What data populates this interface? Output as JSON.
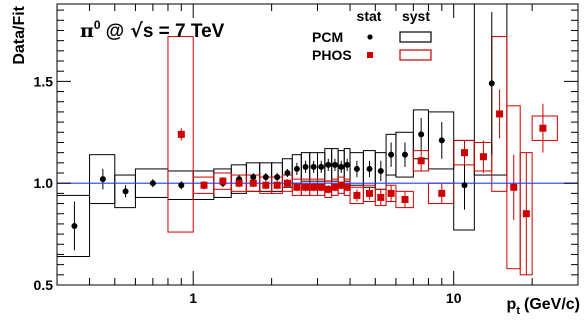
{
  "chart_data": {
    "type": "scatter",
    "title": "π⁰ @ √s = 7 TeV",
    "title_parts": {
      "particle": "π",
      "particle_sup": "0",
      "at": "@",
      "sqrt": "√",
      "s_eq": "s = 7 TeV"
    },
    "xlabel": "p_t (GeV/c)",
    "xlabel_parts": {
      "p": "p",
      "sub": "t",
      "unit": "(GeV/c)"
    },
    "ylabel": "Data/Fit",
    "x_scale": "log",
    "xlim": [
      0.3,
      30
    ],
    "ylim": [
      0.5,
      1.88
    ],
    "x_tick_labels": [
      {
        "value": 1,
        "label": "1"
      },
      {
        "value": 10,
        "label": "10"
      }
    ],
    "y_tick_labels": [
      {
        "value": 0.5,
        "label": "0.5"
      },
      {
        "value": 1.0,
        "label": "1.0"
      },
      {
        "value": 1.5,
        "label": "1.5"
      }
    ],
    "reference_line": {
      "y": 1.0,
      "color": "#1f3fff"
    },
    "legend": {
      "placement": "top-center",
      "stat_header": "stat",
      "syst_header": "syst",
      "entries": [
        {
          "name": "PCM",
          "color": "#000000",
          "marker": "circle"
        },
        {
          "name": "PHOS",
          "color": "#cc0000",
          "marker": "square"
        }
      ]
    },
    "series": [
      {
        "name": "PCM",
        "color": "#000000",
        "marker": "circle",
        "points": [
          {
            "x": 0.35,
            "y": 0.79,
            "xlo": 0.3,
            "xhi": 0.4,
            "stat": 0.12,
            "syst": 0.15
          },
          {
            "x": 0.45,
            "y": 1.02,
            "xlo": 0.4,
            "xhi": 0.5,
            "stat": 0.05,
            "syst": 0.12
          },
          {
            "x": 0.55,
            "y": 0.96,
            "xlo": 0.5,
            "xhi": 0.6,
            "stat": 0.03,
            "syst": 0.08
          },
          {
            "x": 0.7,
            "y": 1.0,
            "xlo": 0.6,
            "xhi": 0.8,
            "stat": 0.02,
            "syst": 0.07
          },
          {
            "x": 0.9,
            "y": 0.99,
            "xlo": 0.8,
            "xhi": 1.0,
            "stat": 0.02,
            "syst": 0.07
          },
          {
            "x": 1.1,
            "y": 0.99,
            "xlo": 1.0,
            "xhi": 1.2,
            "stat": 0.02,
            "syst": 0.07
          },
          {
            "x": 1.3,
            "y": 1.0,
            "xlo": 1.2,
            "xhi": 1.4,
            "stat": 0.02,
            "syst": 0.07
          },
          {
            "x": 1.5,
            "y": 1.02,
            "xlo": 1.4,
            "xhi": 1.6,
            "stat": 0.02,
            "syst": 0.07
          },
          {
            "x": 1.7,
            "y": 1.03,
            "xlo": 1.6,
            "xhi": 1.8,
            "stat": 0.02,
            "syst": 0.07
          },
          {
            "x": 1.9,
            "y": 1.03,
            "xlo": 1.8,
            "xhi": 2.0,
            "stat": 0.02,
            "syst": 0.07
          },
          {
            "x": 2.1,
            "y": 1.03,
            "xlo": 2.0,
            "xhi": 2.2,
            "stat": 0.02,
            "syst": 0.07
          },
          {
            "x": 2.3,
            "y": 1.05,
            "xlo": 2.2,
            "xhi": 2.4,
            "stat": 0.02,
            "syst": 0.07
          },
          {
            "x": 2.5,
            "y": 1.07,
            "xlo": 2.4,
            "xhi": 2.6,
            "stat": 0.03,
            "syst": 0.07
          },
          {
            "x": 2.7,
            "y": 1.08,
            "xlo": 2.6,
            "xhi": 2.8,
            "stat": 0.03,
            "syst": 0.07
          },
          {
            "x": 2.9,
            "y": 1.08,
            "xlo": 2.8,
            "xhi": 3.0,
            "stat": 0.03,
            "syst": 0.07
          },
          {
            "x": 3.1,
            "y": 1.08,
            "xlo": 3.0,
            "xhi": 3.2,
            "stat": 0.03,
            "syst": 0.07
          },
          {
            "x": 3.3,
            "y": 1.09,
            "xlo": 3.2,
            "xhi": 3.4,
            "stat": 0.03,
            "syst": 0.08
          },
          {
            "x": 3.5,
            "y": 1.09,
            "xlo": 3.4,
            "xhi": 3.6,
            "stat": 0.03,
            "syst": 0.08
          },
          {
            "x": 3.7,
            "y": 1.08,
            "xlo": 3.6,
            "xhi": 3.8,
            "stat": 0.03,
            "syst": 0.08
          },
          {
            "x": 3.9,
            "y": 1.09,
            "xlo": 3.8,
            "xhi": 4.0,
            "stat": 0.03,
            "syst": 0.08
          },
          {
            "x": 4.25,
            "y": 1.07,
            "xlo": 4.0,
            "xhi": 4.5,
            "stat": 0.04,
            "syst": 0.08
          },
          {
            "x": 4.75,
            "y": 1.07,
            "xlo": 4.5,
            "xhi": 5.0,
            "stat": 0.04,
            "syst": 0.09
          },
          {
            "x": 5.25,
            "y": 1.06,
            "xlo": 5.0,
            "xhi": 5.5,
            "stat": 0.05,
            "syst": 0.09
          },
          {
            "x": 5.75,
            "y": 1.14,
            "xlo": 5.5,
            "xhi": 6.0,
            "stat": 0.06,
            "syst": 0.1
          },
          {
            "x": 6.5,
            "y": 1.14,
            "xlo": 6.0,
            "xhi": 7.0,
            "stat": 0.06,
            "syst": 0.11
          },
          {
            "x": 7.5,
            "y": 1.24,
            "xlo": 7.0,
            "xhi": 8.0,
            "stat": 0.08,
            "syst": 0.12
          },
          {
            "x": 9.0,
            "y": 1.21,
            "xlo": 8.0,
            "xhi": 10.0,
            "stat": 0.09,
            "syst": 0.14
          },
          {
            "x": 11.0,
            "y": 0.99,
            "xlo": 10.0,
            "xhi": 12.0,
            "stat": 0.12,
            "syst": 0.22
          },
          {
            "x": 14.0,
            "y": 1.49,
            "xlo": 12.0,
            "xhi": 16.0,
            "stat": 0.35,
            "syst": 0.45
          }
        ]
      },
      {
        "name": "PHOS",
        "color": "#cc0000",
        "marker": "square",
        "points": [
          {
            "x": 0.9,
            "y": 1.24,
            "xlo": 0.8,
            "xhi": 1.0,
            "stat": 0.03,
            "syst": 0.48
          },
          {
            "x": 1.1,
            "y": 0.99,
            "xlo": 1.0,
            "xhi": 1.2,
            "stat": 0.02,
            "syst": 0.04
          },
          {
            "x": 1.3,
            "y": 1.01,
            "xlo": 1.2,
            "xhi": 1.4,
            "stat": 0.02,
            "syst": 0.04
          },
          {
            "x": 1.5,
            "y": 1.0,
            "xlo": 1.4,
            "xhi": 1.6,
            "stat": 0.02,
            "syst": 0.04
          },
          {
            "x": 1.7,
            "y": 1.0,
            "xlo": 1.6,
            "xhi": 1.8,
            "stat": 0.02,
            "syst": 0.04
          },
          {
            "x": 1.9,
            "y": 0.99,
            "xlo": 1.8,
            "xhi": 2.0,
            "stat": 0.02,
            "syst": 0.04
          },
          {
            "x": 2.1,
            "y": 0.99,
            "xlo": 2.0,
            "xhi": 2.2,
            "stat": 0.02,
            "syst": 0.04
          },
          {
            "x": 2.3,
            "y": 1.0,
            "xlo": 2.2,
            "xhi": 2.4,
            "stat": 0.02,
            "syst": 0.04
          },
          {
            "x": 2.5,
            "y": 0.98,
            "xlo": 2.4,
            "xhi": 2.6,
            "stat": 0.02,
            "syst": 0.04
          },
          {
            "x": 2.7,
            "y": 0.98,
            "xlo": 2.6,
            "xhi": 2.8,
            "stat": 0.02,
            "syst": 0.04
          },
          {
            "x": 2.9,
            "y": 0.98,
            "xlo": 2.8,
            "xhi": 3.0,
            "stat": 0.02,
            "syst": 0.04
          },
          {
            "x": 3.1,
            "y": 0.98,
            "xlo": 3.0,
            "xhi": 3.2,
            "stat": 0.02,
            "syst": 0.04
          },
          {
            "x": 3.3,
            "y": 0.97,
            "xlo": 3.2,
            "xhi": 3.4,
            "stat": 0.02,
            "syst": 0.04
          },
          {
            "x": 3.5,
            "y": 0.98,
            "xlo": 3.4,
            "xhi": 3.6,
            "stat": 0.02,
            "syst": 0.04
          },
          {
            "x": 3.7,
            "y": 0.99,
            "xlo": 3.6,
            "xhi": 3.8,
            "stat": 0.02,
            "syst": 0.04
          },
          {
            "x": 3.9,
            "y": 0.98,
            "xlo": 3.8,
            "xhi": 4.0,
            "stat": 0.02,
            "syst": 0.04
          },
          {
            "x": 4.25,
            "y": 0.94,
            "xlo": 4.0,
            "xhi": 4.5,
            "stat": 0.03,
            "syst": 0.04
          },
          {
            "x": 4.75,
            "y": 0.95,
            "xlo": 4.5,
            "xhi": 5.0,
            "stat": 0.03,
            "syst": 0.04
          },
          {
            "x": 5.25,
            "y": 0.93,
            "xlo": 5.0,
            "xhi": 5.5,
            "stat": 0.04,
            "syst": 0.04
          },
          {
            "x": 5.75,
            "y": 0.95,
            "xlo": 5.5,
            "xhi": 6.0,
            "stat": 0.04,
            "syst": 0.04
          },
          {
            "x": 6.5,
            "y": 0.92,
            "xlo": 6.0,
            "xhi": 7.0,
            "stat": 0.04,
            "syst": 0.04
          },
          {
            "x": 7.5,
            "y": 1.11,
            "xlo": 7.0,
            "xhi": 8.0,
            "stat": 0.05,
            "syst": 0.05
          },
          {
            "x": 9.0,
            "y": 0.95,
            "xlo": 8.0,
            "xhi": 10.0,
            "stat": 0.05,
            "syst": 0.05
          },
          {
            "x": 11.0,
            "y": 1.15,
            "xlo": 10.0,
            "xhi": 12.0,
            "stat": 0.06,
            "syst": 0.06
          },
          {
            "x": 13.0,
            "y": 1.13,
            "xlo": 12.0,
            "xhi": 14.0,
            "stat": 0.08,
            "syst": 0.07
          },
          {
            "x": 15.0,
            "y": 1.34,
            "xlo": 14.0,
            "xhi": 16.0,
            "stat": 0.12,
            "syst": 0.38
          },
          {
            "x": 17.0,
            "y": 0.98,
            "xlo": 16.0,
            "xhi": 18.0,
            "stat": 0.16,
            "syst": 0.4
          },
          {
            "x": 19.0,
            "y": 0.85,
            "xlo": 18.0,
            "xhi": 20.0,
            "stat": 0.3,
            "syst": 0.3
          },
          {
            "x": 22.0,
            "y": 1.27,
            "xlo": 20.0,
            "xhi": 25.0,
            "stat": 0.12,
            "syst": 0.06
          }
        ]
      }
    ]
  }
}
